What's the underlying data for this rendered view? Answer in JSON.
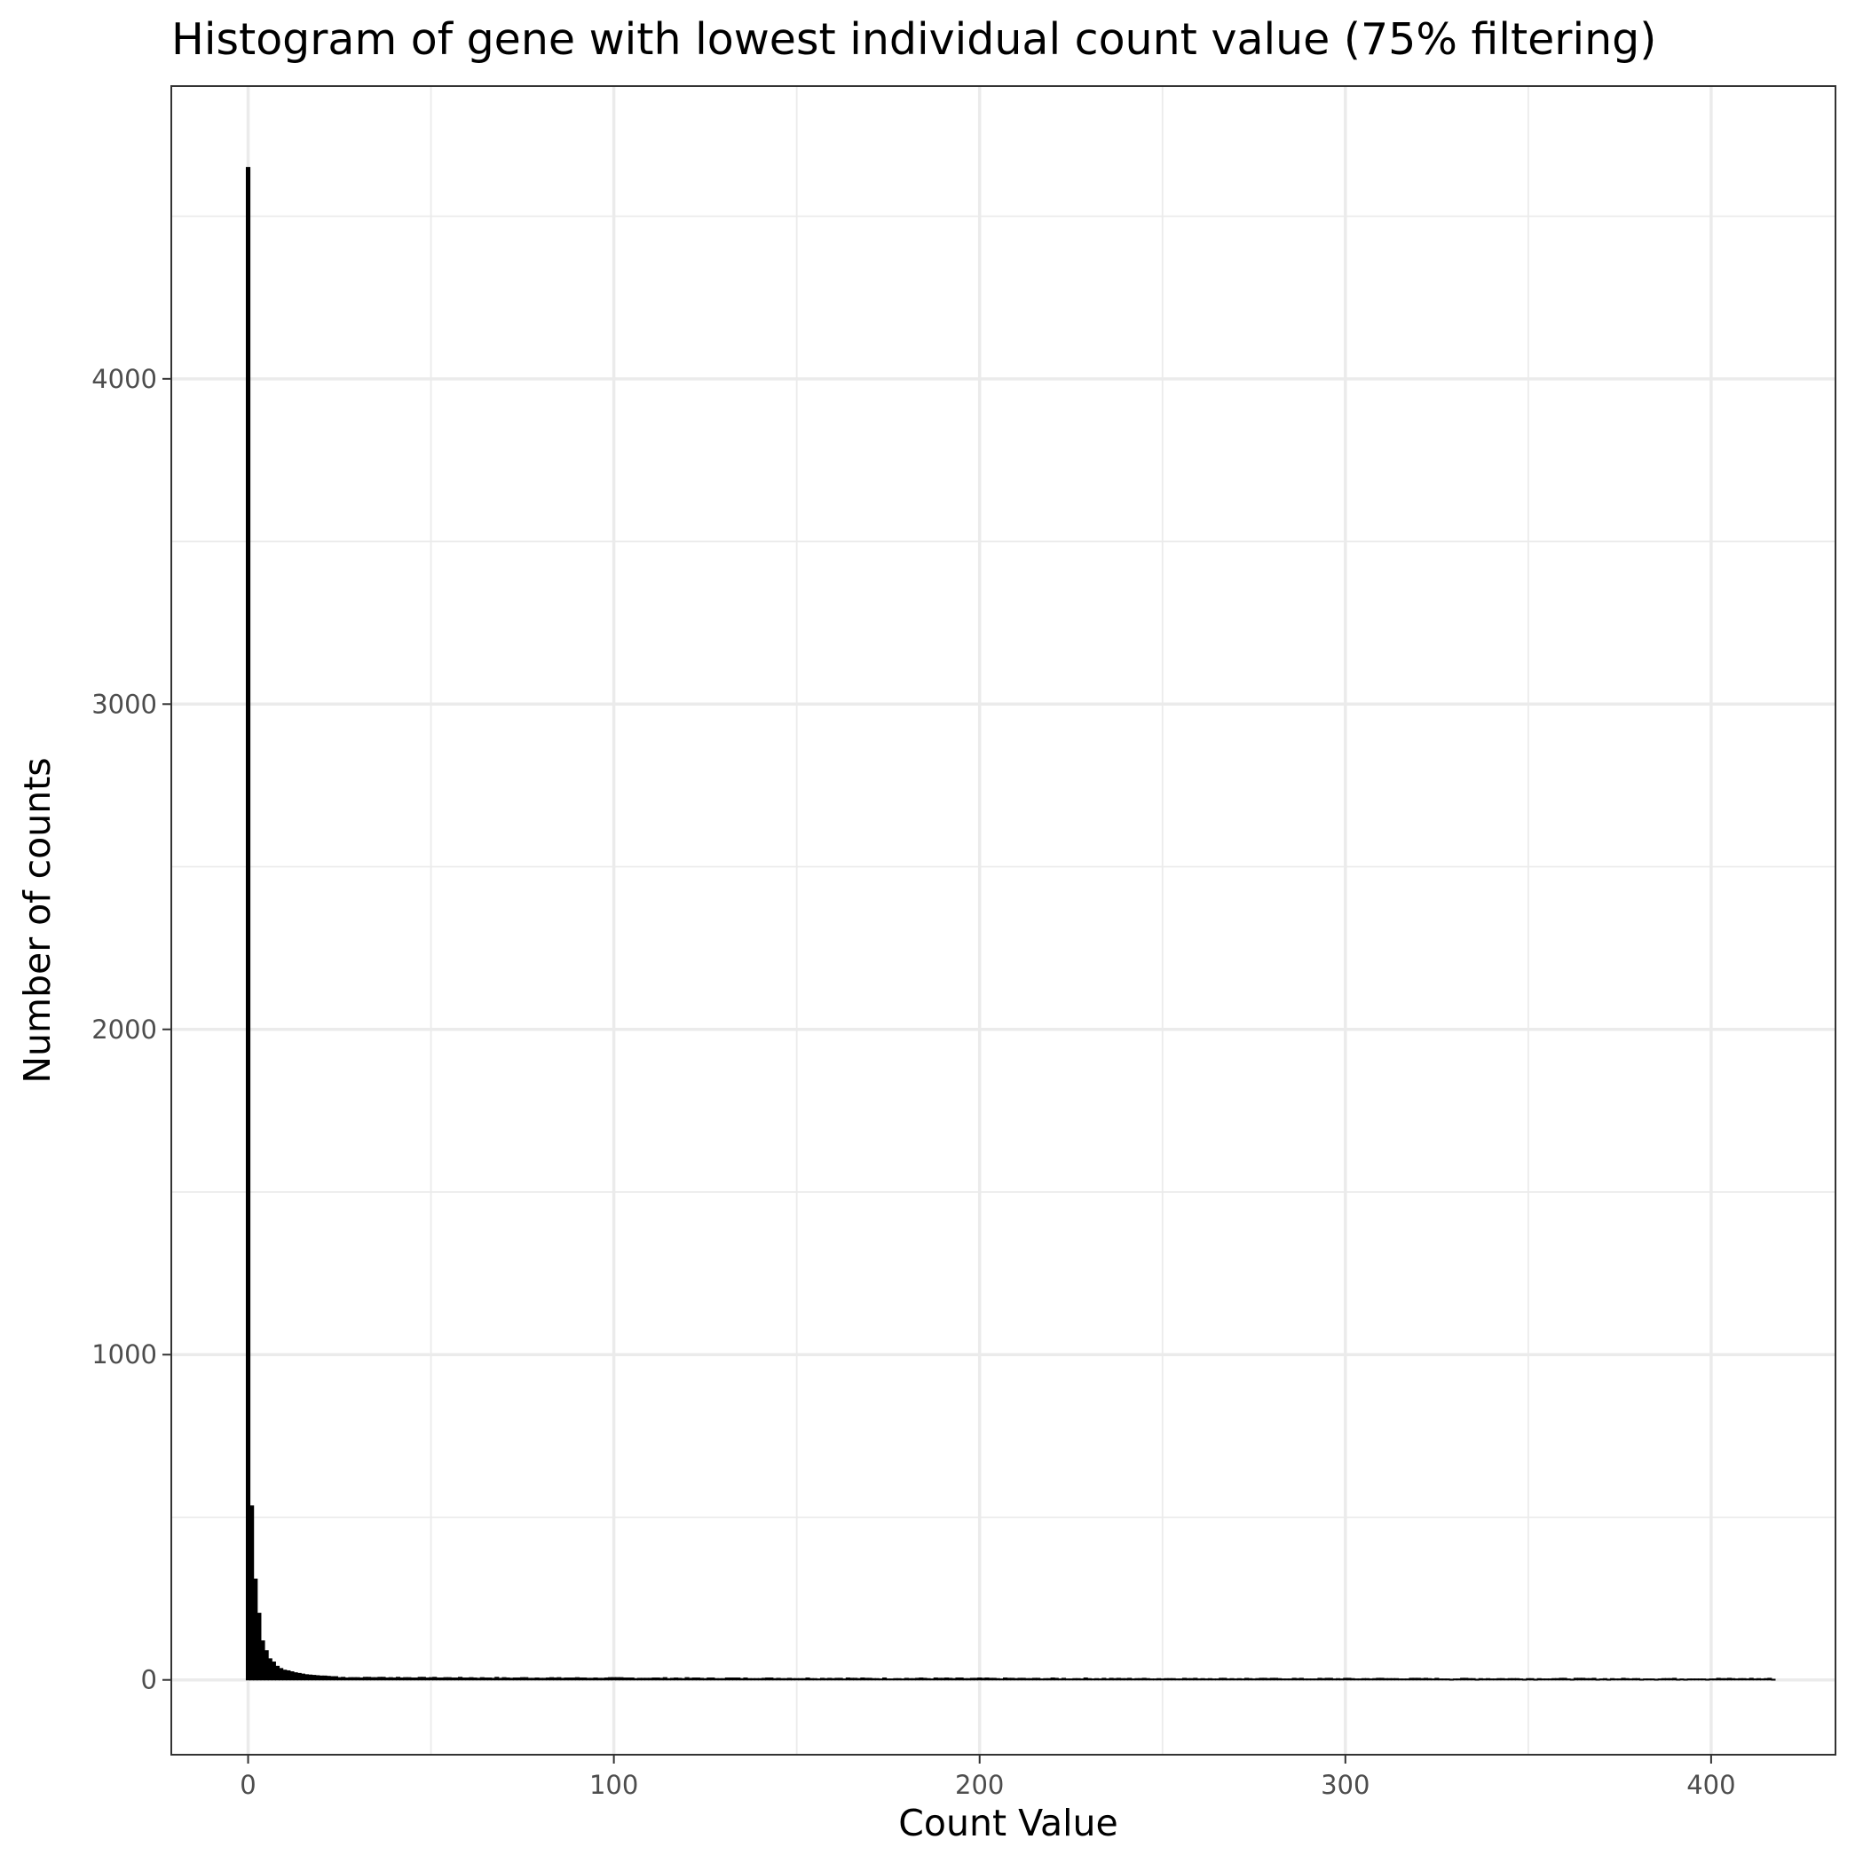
{
  "chart_data": {
    "type": "bar",
    "subtype": "histogram",
    "title": "Histogram of gene with lowest individual count value (75% filtering)",
    "xlabel": "Count Value",
    "ylabel": "Number of counts",
    "xlim": [
      -21,
      434
    ],
    "ylim": [
      -230,
      4900
    ],
    "x_ticks": [
      0,
      100,
      200,
      300,
      400
    ],
    "y_ticks": [
      0,
      1000,
      2000,
      3000,
      4000
    ],
    "x_minor_ticks": [
      50,
      150,
      250,
      350
    ],
    "y_minor_ticks": [
      500,
      1500,
      2500,
      3500,
      4500
    ],
    "grid": true,
    "legend": "none",
    "bar_color": "#000000",
    "bin_width": 1,
    "bins": [
      {
        "x": 0,
        "count": 4650
      },
      {
        "x": 1,
        "count": 535
      },
      {
        "x": 2,
        "count": 310
      },
      {
        "x": 3,
        "count": 205
      },
      {
        "x": 4,
        "count": 120
      },
      {
        "x": 5,
        "count": 90
      },
      {
        "x": 6,
        "count": 65
      },
      {
        "x": 7,
        "count": 55
      },
      {
        "x": 8,
        "count": 42
      },
      {
        "x": 9,
        "count": 35
      },
      {
        "x": 10,
        "count": 30
      },
      {
        "x": 11,
        "count": 28
      },
      {
        "x": 12,
        "count": 25
      },
      {
        "x": 13,
        "count": 22
      },
      {
        "x": 14,
        "count": 20
      },
      {
        "x": 15,
        "count": 18
      },
      {
        "x": 16,
        "count": 16
      },
      {
        "x": 17,
        "count": 15
      },
      {
        "x": 18,
        "count": 14
      },
      {
        "x": 19,
        "count": 13
      },
      {
        "x": 20,
        "count": 12
      },
      {
        "x": 21,
        "count": 12
      },
      {
        "x": 22,
        "count": 11
      },
      {
        "x": 23,
        "count": 10
      },
      {
        "x": 24,
        "count": 10
      }
    ],
    "tail": {
      "from": 25,
      "to": 417,
      "count_range": [
        2,
        10
      ]
    }
  }
}
